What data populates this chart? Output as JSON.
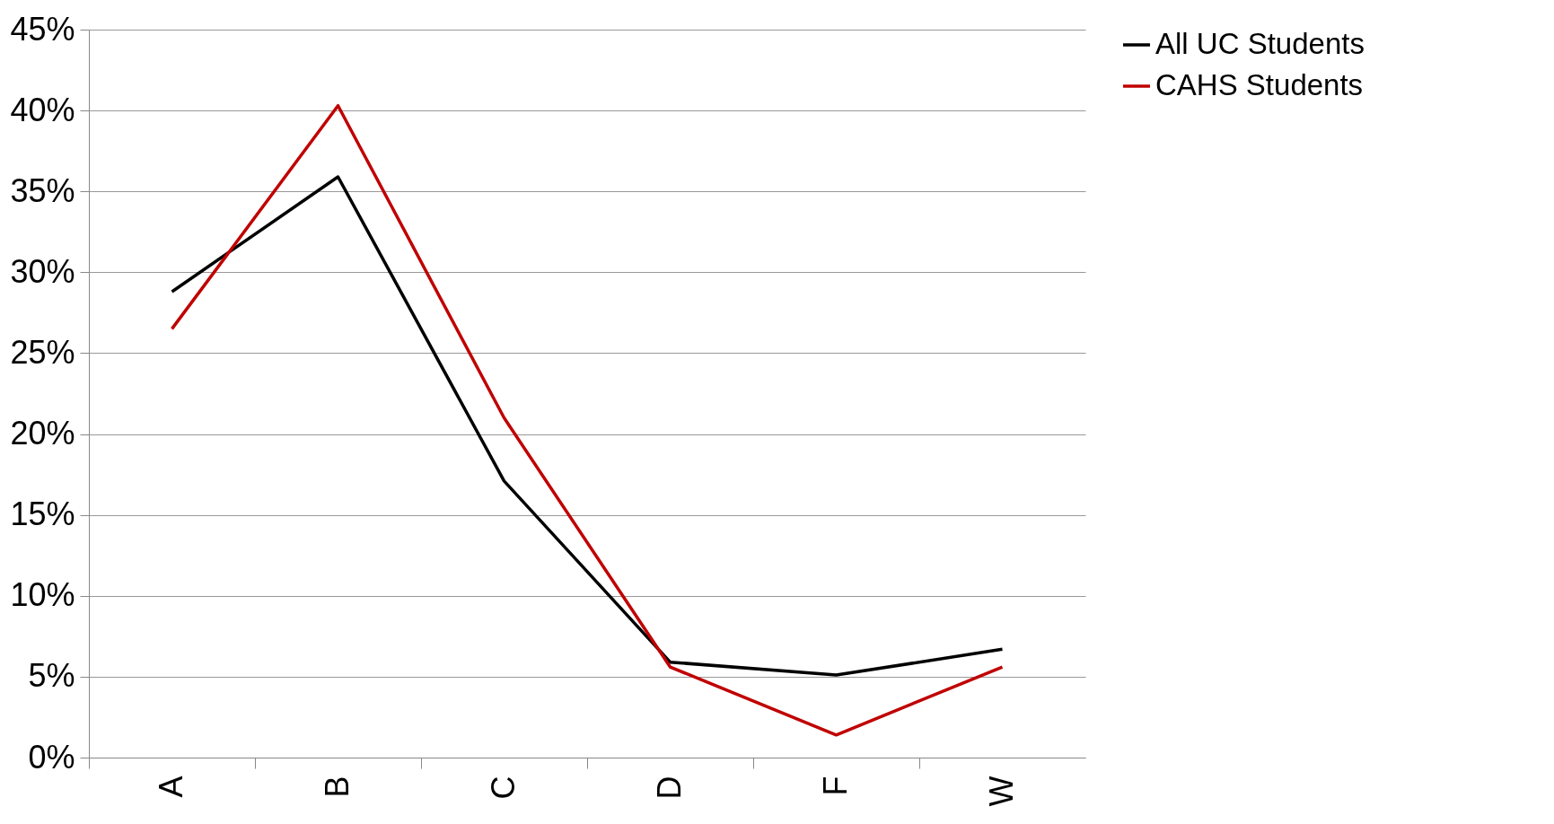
{
  "chart_data": {
    "type": "line",
    "categories": [
      "A",
      "B",
      "C",
      "D",
      "F",
      "W"
    ],
    "series": [
      {
        "name": "All UC Students",
        "color": "#000000",
        "values": [
          28.8,
          35.9,
          17.1,
          5.9,
          5.1,
          6.7
        ]
      },
      {
        "name": "CAHS Students",
        "color": "#c00000",
        "values": [
          26.5,
          40.3,
          21.0,
          5.6,
          1.4,
          5.6
        ]
      }
    ],
    "ylim": [
      0,
      45
    ],
    "yticks": [
      {
        "value": 0,
        "label": "0%"
      },
      {
        "value": 5,
        "label": "5%"
      },
      {
        "value": 10,
        "label": "10%"
      },
      {
        "value": 15,
        "label": "15%"
      },
      {
        "value": 20,
        "label": "20%"
      },
      {
        "value": 25,
        "label": "25%"
      },
      {
        "value": 30,
        "label": "30%"
      },
      {
        "value": 35,
        "label": "35%"
      },
      {
        "value": 40,
        "label": "40%"
      },
      {
        "value": 45,
        "label": "45%"
      }
    ],
    "grid": "y",
    "legend": "right",
    "marker": "none",
    "line_style": "solid"
  }
}
